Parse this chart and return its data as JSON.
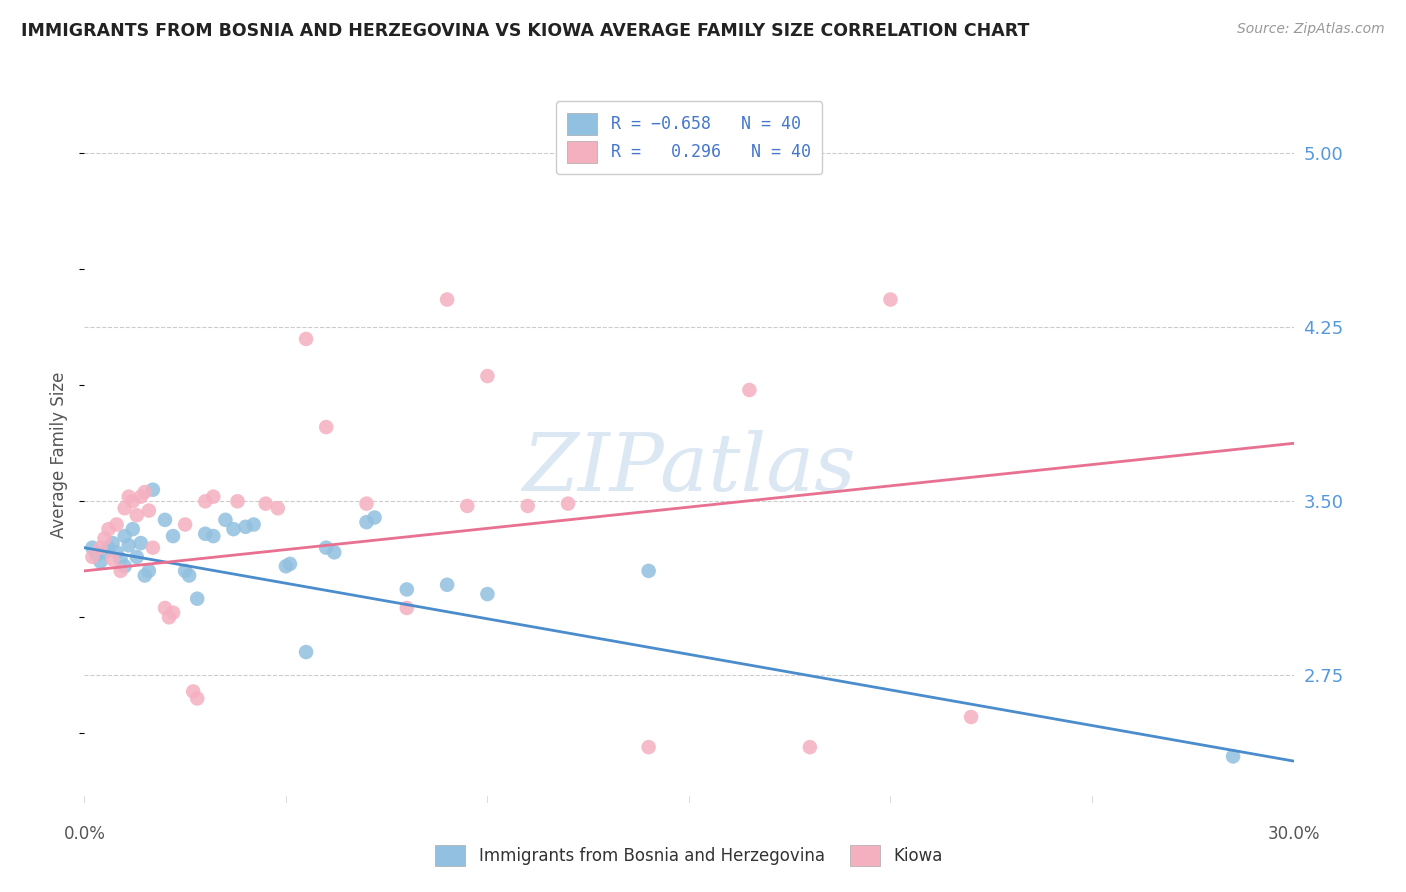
{
  "title": "IMMIGRANTS FROM BOSNIA AND HERZEGOVINA VS KIOWA AVERAGE FAMILY SIZE CORRELATION CHART",
  "source": "Source: ZipAtlas.com",
  "ylabel": "Average Family Size",
  "yticks": [
    2.75,
    3.5,
    4.25,
    5.0
  ],
  "xlim": [
    0.0,
    30.0
  ],
  "ylim": [
    2.2,
    5.2
  ],
  "watermark": "ZIPatlas",
  "legend1_label": "R = -0.658   N = 40",
  "legend2_label": "R =   0.296   N = 40",
  "legend_footer1": "Immigrants from Bosnia and Herzegovina",
  "legend_footer2": "Kiowa",
  "blue_color": "#92c0e0",
  "pink_color": "#f5b0c0",
  "blue_line_color": "#4a8ccc",
  "pink_line_color": "#e87090",
  "blue_scatter": [
    [
      0.2,
      3.3
    ],
    [
      0.3,
      3.27
    ],
    [
      0.4,
      3.24
    ],
    [
      0.5,
      3.28
    ],
    [
      0.6,
      3.3
    ],
    [
      0.7,
      3.32
    ],
    [
      0.8,
      3.28
    ],
    [
      0.9,
      3.25
    ],
    [
      1.0,
      3.22
    ],
    [
      1.0,
      3.35
    ],
    [
      1.1,
      3.31
    ],
    [
      1.2,
      3.38
    ],
    [
      1.3,
      3.26
    ],
    [
      1.4,
      3.32
    ],
    [
      1.5,
      3.18
    ],
    [
      1.6,
      3.2
    ],
    [
      1.7,
      3.55
    ],
    [
      2.0,
      3.42
    ],
    [
      2.2,
      3.35
    ],
    [
      2.5,
      3.2
    ],
    [
      2.6,
      3.18
    ],
    [
      2.8,
      3.08
    ],
    [
      3.0,
      3.36
    ],
    [
      3.2,
      3.35
    ],
    [
      3.5,
      3.42
    ],
    [
      3.7,
      3.38
    ],
    [
      4.0,
      3.39
    ],
    [
      4.2,
      3.4
    ],
    [
      5.0,
      3.22
    ],
    [
      5.1,
      3.23
    ],
    [
      5.5,
      2.85
    ],
    [
      6.0,
      3.3
    ],
    [
      6.2,
      3.28
    ],
    [
      7.0,
      3.41
    ],
    [
      7.2,
      3.43
    ],
    [
      8.0,
      3.12
    ],
    [
      9.0,
      3.14
    ],
    [
      10.0,
      3.1
    ],
    [
      14.0,
      3.2
    ],
    [
      28.5,
      2.4
    ]
  ],
  "pink_scatter": [
    [
      0.2,
      3.26
    ],
    [
      0.4,
      3.3
    ],
    [
      0.5,
      3.34
    ],
    [
      0.6,
      3.38
    ],
    [
      0.7,
      3.25
    ],
    [
      0.8,
      3.4
    ],
    [
      0.9,
      3.2
    ],
    [
      1.0,
      3.47
    ],
    [
      1.1,
      3.52
    ],
    [
      1.2,
      3.5
    ],
    [
      1.3,
      3.44
    ],
    [
      1.4,
      3.52
    ],
    [
      1.5,
      3.54
    ],
    [
      1.6,
      3.46
    ],
    [
      1.7,
      3.3
    ],
    [
      2.0,
      3.04
    ],
    [
      2.1,
      3.0
    ],
    [
      2.2,
      3.02
    ],
    [
      2.5,
      3.4
    ],
    [
      2.7,
      2.68
    ],
    [
      2.8,
      2.65
    ],
    [
      3.0,
      3.5
    ],
    [
      3.2,
      3.52
    ],
    [
      3.8,
      3.5
    ],
    [
      4.5,
      3.49
    ],
    [
      4.8,
      3.47
    ],
    [
      5.5,
      4.2
    ],
    [
      6.0,
      3.82
    ],
    [
      7.0,
      3.49
    ],
    [
      8.0,
      3.04
    ],
    [
      9.0,
      4.37
    ],
    [
      9.5,
      3.48
    ],
    [
      10.0,
      4.04
    ],
    [
      11.0,
      3.48
    ],
    [
      12.0,
      3.49
    ],
    [
      14.0,
      2.44
    ],
    [
      16.5,
      3.98
    ],
    [
      18.0,
      2.44
    ],
    [
      20.0,
      4.37
    ],
    [
      22.0,
      2.57
    ]
  ],
  "blue_line_x": [
    0.0,
    30.0
  ],
  "blue_line_y": [
    3.3,
    2.38
  ],
  "pink_line_x": [
    0.0,
    30.0
  ],
  "pink_line_y": [
    3.2,
    3.75
  ],
  "background_color": "#ffffff",
  "grid_color": "#cccccc",
  "title_color": "#222222",
  "right_ytick_color": "#5599dd"
}
